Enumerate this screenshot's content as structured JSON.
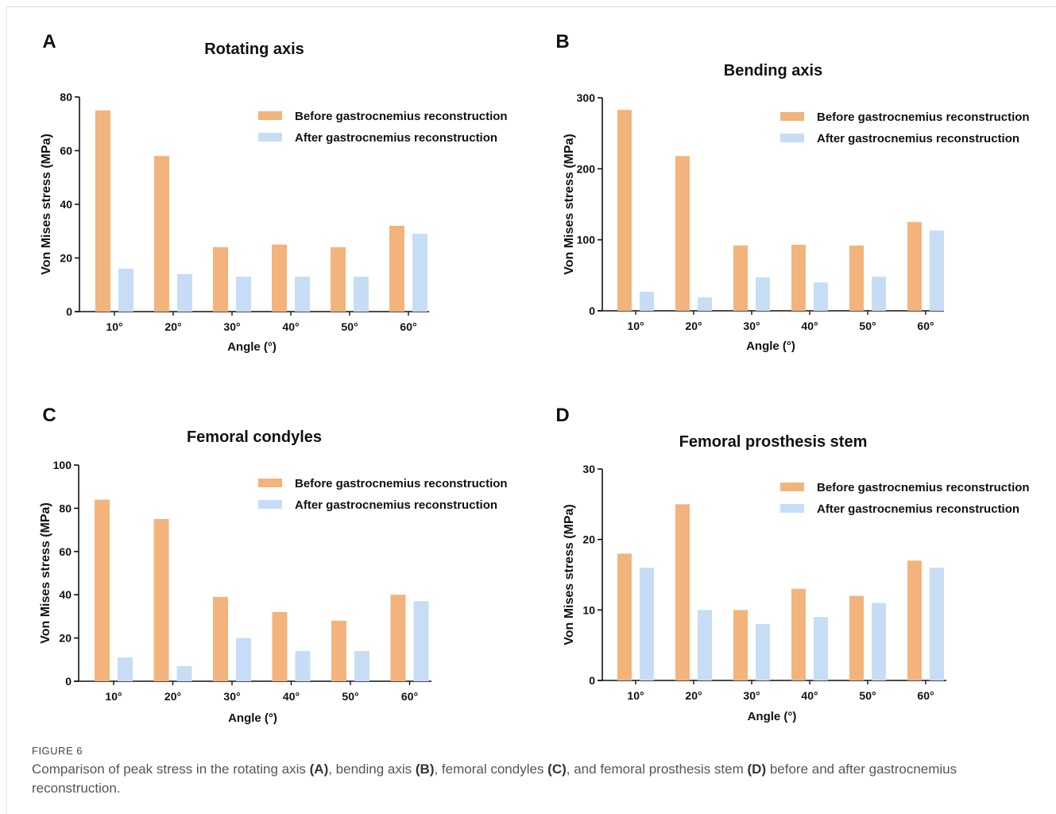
{
  "colors": {
    "before": "#F2B47C",
    "after": "#C7DDF6",
    "axis": "#111111"
  },
  "chart_data": [
    {
      "panel": "A",
      "type": "bar",
      "title": "Rotating axis",
      "xlabel": "Angle (°)",
      "ylabel": "Von Mises stress (MPa)",
      "categories": [
        "10°",
        "20°",
        "30°",
        "40°",
        "50°",
        "60°"
      ],
      "ylim": [
        0,
        80
      ],
      "yticks": [
        0,
        20,
        40,
        60,
        80
      ],
      "legend_position": "top-right",
      "series": [
        {
          "name": "Before gastrocnemius reconstruction",
          "values": [
            75,
            58,
            24,
            25,
            24,
            32
          ]
        },
        {
          "name": "After gastrocnemius reconstruction",
          "values": [
            16,
            14,
            13,
            13,
            13,
            29
          ]
        }
      ]
    },
    {
      "panel": "B",
      "type": "bar",
      "title": "Bending axis",
      "xlabel": "Angle (°)",
      "ylabel": "Von Mises stress (MPa)",
      "categories": [
        "10°",
        "20°",
        "30°",
        "40°",
        "50°",
        "60°"
      ],
      "ylim": [
        0,
        300
      ],
      "yticks": [
        0,
        100,
        200,
        300
      ],
      "legend_position": "top-right",
      "series": [
        {
          "name": "Before gastrocnemius reconstruction",
          "values": [
            283,
            218,
            92,
            93,
            92,
            125
          ]
        },
        {
          "name": "After gastrocnemius reconstruction",
          "values": [
            27,
            19,
            47,
            40,
            48,
            113
          ]
        }
      ]
    },
    {
      "panel": "C",
      "type": "bar",
      "title": "Femoral condyles",
      "xlabel": "Angle (°)",
      "ylabel": "Von Mises stress (MPa)",
      "categories": [
        "10°",
        "20°",
        "30°",
        "40°",
        "50°",
        "60°"
      ],
      "ylim": [
        0,
        100
      ],
      "yticks": [
        0,
        20,
        40,
        60,
        80,
        100
      ],
      "legend_position": "top-right",
      "series": [
        {
          "name": "Before gastrocnemius reconstruction",
          "values": [
            84,
            75,
            39,
            32,
            28,
            40
          ]
        },
        {
          "name": "After gastrocnemius reconstruction",
          "values": [
            11,
            7,
            20,
            14,
            14,
            37
          ]
        }
      ]
    },
    {
      "panel": "D",
      "type": "bar",
      "title": "Femoral prosthesis stem",
      "xlabel": "Angle (°)",
      "ylabel": "Von Mises stress (MPa)",
      "categories": [
        "10°",
        "20°",
        "30°",
        "40°",
        "50°",
        "60°"
      ],
      "ylim": [
        0,
        30
      ],
      "yticks": [
        0,
        10,
        20,
        30
      ],
      "legend_position": "top-right",
      "series": [
        {
          "name": "Before gastrocnemius reconstruction",
          "values": [
            18,
            25,
            10,
            13,
            12,
            17
          ]
        },
        {
          "name": "After gastrocnemius reconstruction",
          "values": [
            16,
            10,
            8,
            9,
            11,
            16
          ]
        }
      ]
    }
  ],
  "caption": {
    "label": "FIGURE 6",
    "parts": [
      {
        "text": "Comparison of peak stress in the rotating axis ",
        "bold": false
      },
      {
        "text": "(A)",
        "bold": true
      },
      {
        "text": ", bending axis ",
        "bold": false
      },
      {
        "text": "(B)",
        "bold": true
      },
      {
        "text": ", femoral condyles ",
        "bold": false
      },
      {
        "text": "(C)",
        "bold": true
      },
      {
        "text": ", and femoral prosthesis stem ",
        "bold": false
      },
      {
        "text": "(D)",
        "bold": true
      },
      {
        "text": " before and after gastrocnemius reconstruction.",
        "bold": false
      }
    ]
  }
}
